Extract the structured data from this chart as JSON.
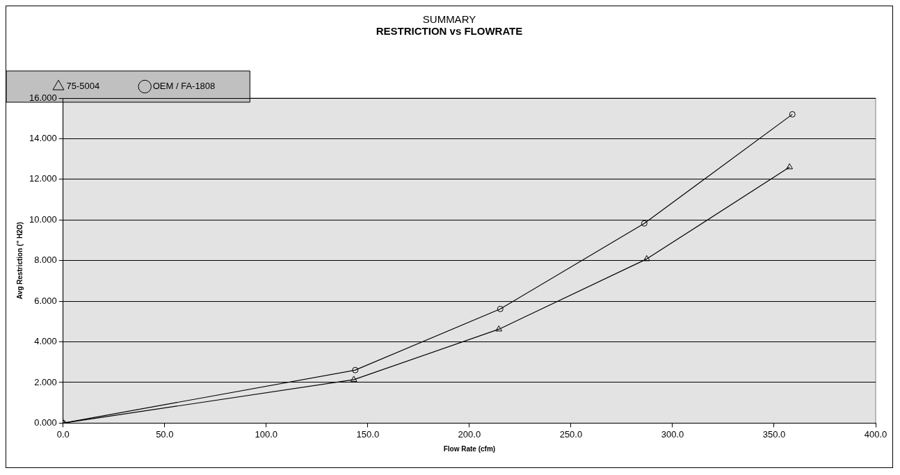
{
  "chart_data": {
    "type": "line",
    "title": "RESTRICTION vs FLOWRATE",
    "subtitle": "SUMMARY",
    "xlabel": "Flow Rate (cfm)",
    "ylabel": "Avg Restriction (\" H2O)",
    "xlim": [
      0,
      400
    ],
    "xticks": [
      {
        "value": 0,
        "label": "0.0"
      },
      {
        "value": 50,
        "label": "50.0"
      },
      {
        "value": 100,
        "label": "100.0"
      },
      {
        "value": 150,
        "label": "150.0"
      },
      {
        "value": 200,
        "label": "200.0"
      },
      {
        "value": 250,
        "label": "250.0"
      },
      {
        "value": 300,
        "label": "300.0"
      },
      {
        "value": 350,
        "label": "350.0"
      },
      {
        "value": 400,
        "label": "400.0"
      }
    ],
    "ylim": [
      0,
      16
    ],
    "yticks": [
      {
        "value": 0,
        "label": "0.000"
      },
      {
        "value": 2,
        "label": "2.000"
      },
      {
        "value": 4,
        "label": "4.000"
      },
      {
        "value": 6,
        "label": "6.000"
      },
      {
        "value": 8,
        "label": "8.000"
      },
      {
        "value": 10,
        "label": "10.000"
      },
      {
        "value": 12,
        "label": "12.000"
      },
      {
        "value": 14,
        "label": "14.000"
      },
      {
        "value": 16,
        "label": "16.000"
      }
    ],
    "grid": "y",
    "legend": "top",
    "series": [
      {
        "name": "75-5004",
        "color": "#000000",
        "marker": "triangle",
        "x": [
          0,
          143.1,
          214.5,
          287.3,
          357.6
        ],
        "values": [
          0,
          2.14,
          4.62,
          8.08,
          12.6
        ]
      },
      {
        "name": "OEM / FA-1808",
        "color": "#000000",
        "marker": "circle",
        "x": [
          0,
          143.8,
          215.2,
          286.1,
          359
        ],
        "values": [
          0,
          2.61,
          5.62,
          9.83,
          15.2
        ]
      }
    ]
  }
}
